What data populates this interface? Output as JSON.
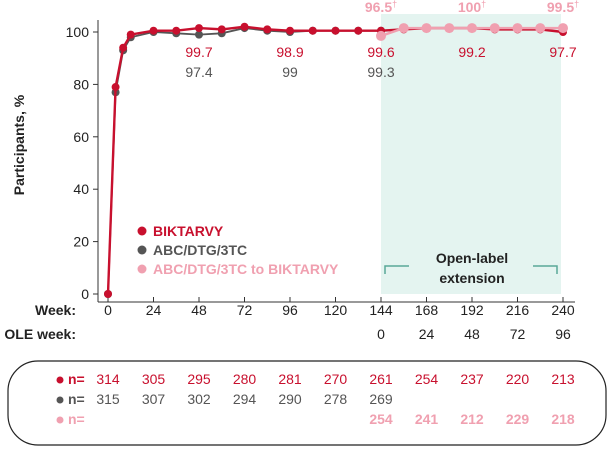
{
  "chart_data": {
    "type": "line",
    "ylabel": "Participants, %",
    "ylim": [
      0,
      100
    ],
    "yticks": [
      0,
      20,
      40,
      60,
      80,
      100
    ],
    "xlim": [
      0,
      240
    ],
    "week_label": "Week:",
    "ole_label": "OLE week:",
    "week_ticks": [
      0,
      24,
      48,
      72,
      96,
      120,
      144,
      168,
      192,
      216,
      240
    ],
    "ole_ticks": [
      0,
      24,
      48,
      72,
      96
    ],
    "ole_start_week": 144,
    "ole_box_label_1": "Open-label",
    "ole_box_label_2": "extension",
    "colors": {
      "biktarvy": "#c8102e",
      "abc": "#555555",
      "switch": "#f0a0b0",
      "ole": "#e4f4f0"
    },
    "series": [
      {
        "key": "biktarvy",
        "name": "BIKTARVY",
        "x": [
          0,
          4,
          8,
          12,
          24,
          36,
          48,
          60,
          72,
          84,
          96,
          108,
          120,
          132,
          144,
          156,
          168,
          180,
          192,
          204,
          216,
          228,
          240
        ],
        "y": [
          0,
          79,
          94,
          99,
          100.5,
          100.5,
          101.5,
          101,
          102,
          101,
          100.5,
          100.5,
          100.5,
          100.5,
          100.5,
          101,
          101.5,
          101.5,
          101.5,
          101,
          101,
          101,
          100
        ]
      },
      {
        "key": "abc",
        "name": "ABC/DTG/3TC",
        "x": [
          0,
          4,
          8,
          12,
          24,
          36,
          48,
          60,
          72,
          84,
          96,
          108,
          120,
          132,
          144
        ],
        "y": [
          0,
          77,
          93,
          98,
          100,
          99.5,
          99,
          99.5,
          101.5,
          100.5,
          100,
          100.5,
          100.5,
          100.5,
          100.5
        ]
      },
      {
        "key": "switch",
        "name": "ABC/DTG/3TC to BIKTARVY",
        "x": [
          144,
          156,
          168,
          180,
          192,
          204,
          216,
          228,
          240
        ],
        "y": [
          98.5,
          101.5,
          101.5,
          101.5,
          101.5,
          101.5,
          101.5,
          101.5,
          101.5
        ]
      }
    ],
    "annotations": [
      {
        "series": "biktarvy",
        "week": 48,
        "text": "99.7"
      },
      {
        "series": "abc",
        "week": 48,
        "text": "97.4"
      },
      {
        "series": "biktarvy",
        "week": 96,
        "text": "98.9"
      },
      {
        "series": "abc",
        "week": 96,
        "text": "99"
      },
      {
        "series": "biktarvy",
        "week": 144,
        "text": "99.6"
      },
      {
        "series": "abc",
        "week": 144,
        "text": "99.3"
      },
      {
        "series": "biktarvy",
        "week": 192,
        "text": "99.2"
      },
      {
        "series": "biktarvy",
        "week": 240,
        "text": "97.7"
      },
      {
        "series": "switch",
        "week": 144,
        "text": "96.5",
        "mark": "†"
      },
      {
        "series": "switch",
        "week": 192,
        "text": "100",
        "mark": "†"
      },
      {
        "series": "switch",
        "week": 240,
        "text": "99.5",
        "mark": "†"
      }
    ],
    "n_label": "n=",
    "n_table": [
      {
        "series": "biktarvy",
        "values": [
          "314",
          "305",
          "295",
          "280",
          "281",
          "270",
          "261",
          "254",
          "237",
          "220",
          "213"
        ]
      },
      {
        "series": "abc",
        "values": [
          "315",
          "307",
          "302",
          "294",
          "290",
          "278",
          "269",
          "",
          "",
          "",
          ""
        ]
      },
      {
        "series": "switch",
        "values": [
          "",
          "",
          "",
          "",
          "",
          "",
          "254",
          "241",
          "212",
          "229",
          "218"
        ]
      }
    ]
  }
}
